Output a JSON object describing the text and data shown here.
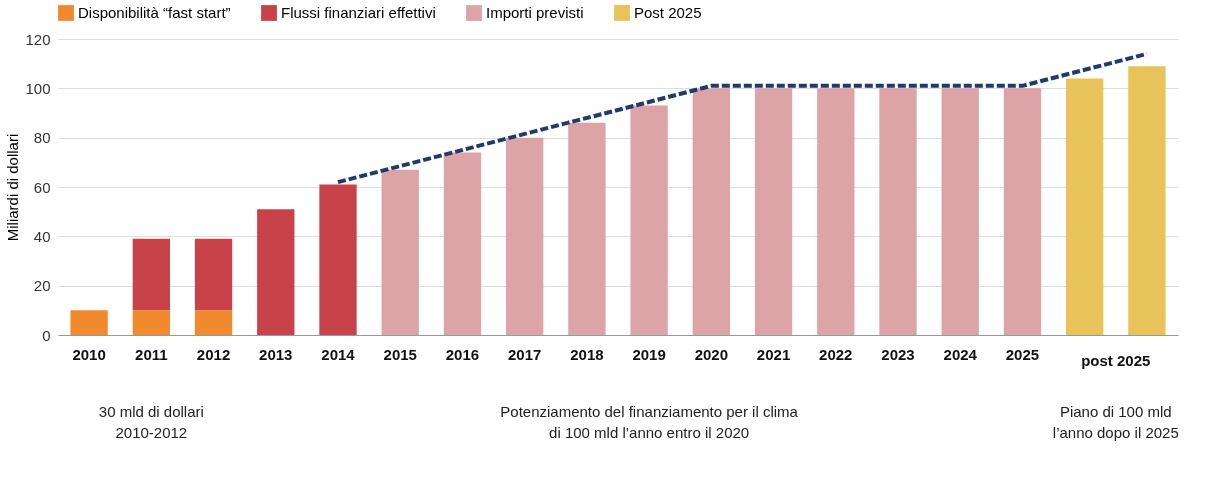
{
  "chart_data": {
    "type": "bar",
    "stacked": true,
    "ylabel": "Miliardi di dollari",
    "categories": [
      "2010",
      "2011",
      "2012",
      "2013",
      "2014",
      "2015",
      "2016",
      "2017",
      "2018",
      "2019",
      "2020",
      "2021",
      "2022",
      "2023",
      "2024",
      "2025",
      null,
      null
    ],
    "series": [
      {
        "name": "Disponibilità “fast start”",
        "color": "#f08a2c",
        "values": [
          10,
          10,
          10,
          null,
          null,
          null,
          null,
          null,
          null,
          null,
          null,
          null,
          null,
          null,
          null,
          null,
          null,
          null
        ]
      },
      {
        "name": "Flussi finanziari effettivi",
        "color": "#c8424a",
        "values": [
          null,
          29,
          29,
          51,
          61,
          null,
          null,
          null,
          null,
          null,
          null,
          null,
          null,
          null,
          null,
          null,
          null,
          null
        ]
      },
      {
        "name": "Importi previsti",
        "color": "#dca4a7",
        "values": [
          null,
          null,
          null,
          null,
          null,
          67,
          74,
          80,
          86,
          93,
          100,
          100,
          100,
          100,
          100,
          100,
          null,
          null
        ]
      },
      {
        "name": "Post 2025",
        "color": "#e8c35a",
        "values": [
          null,
          null,
          null,
          null,
          null,
          null,
          null,
          null,
          null,
          null,
          null,
          null,
          null,
          null,
          null,
          null,
          104,
          109
        ]
      },
      {
        "type": "line",
        "color": "#1f3a6e",
        "line_style": "dashed",
        "values": [
          null,
          null,
          null,
          null,
          62,
          null,
          null,
          null,
          null,
          null,
          101,
          null,
          null,
          null,
          null,
          101,
          null,
          114
        ]
      }
    ],
    "ylim": [
      0,
      120
    ],
    "yticks": [
      0,
      20,
      40,
      60,
      80,
      100,
      120
    ],
    "grid": "y",
    "legend": "top",
    "annotations": [
      "post 2025",
      "30 mld di dollari\n2010-2012",
      "Potenziamento del finanziamento per il clima\ndi 100 mld l’anno entro il 2020",
      "Piano di 100 mld\nl’anno dopo il 2025"
    ]
  }
}
